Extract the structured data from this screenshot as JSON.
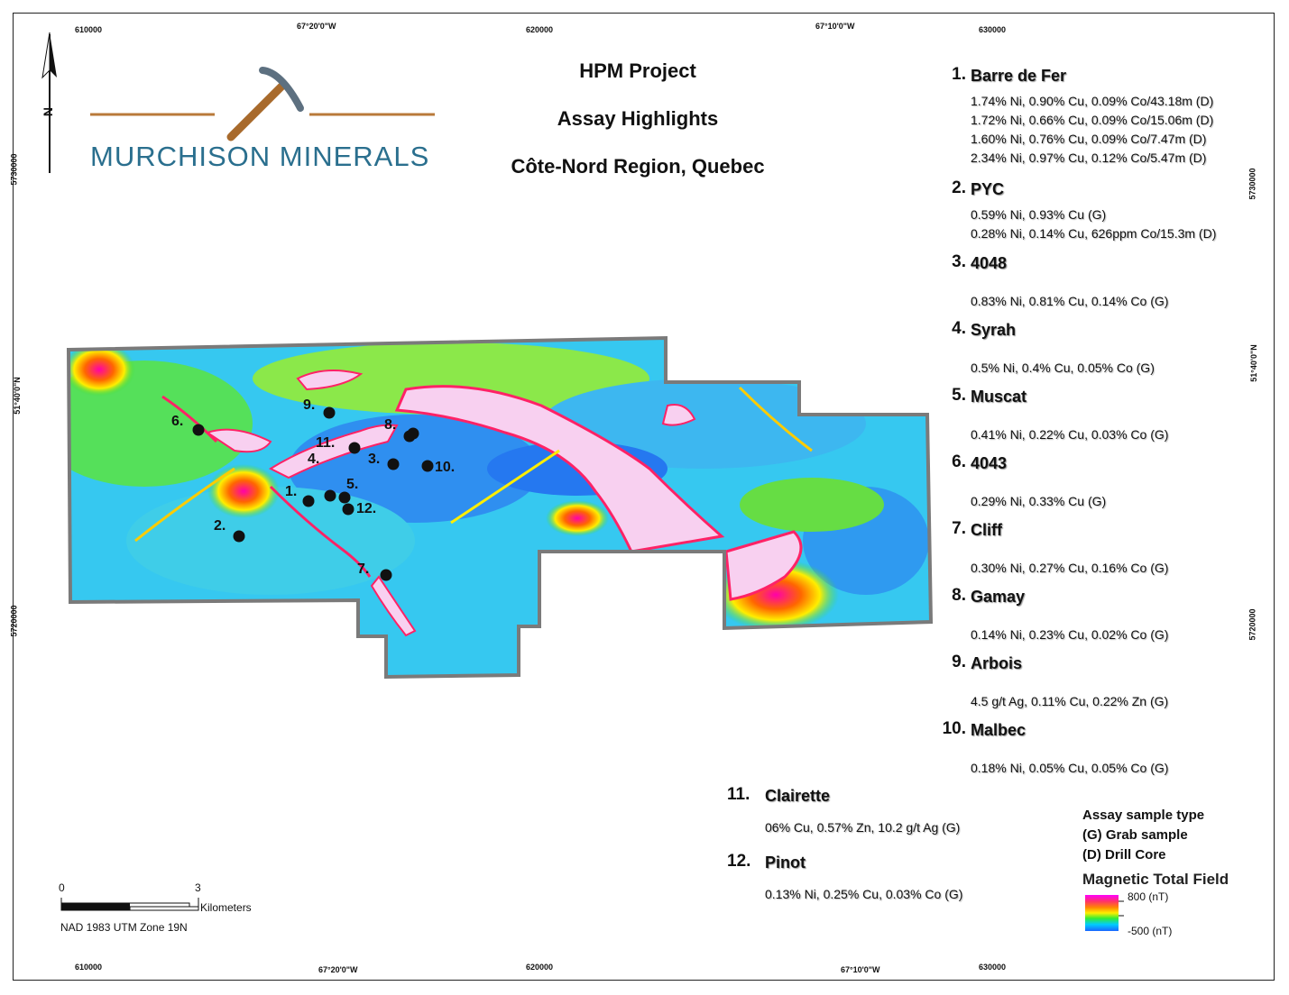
{
  "title": {
    "line1": "HPM Project",
    "line2": "Assay Highlights",
    "line3": "Côte-Nord Region, Quebec"
  },
  "logo": {
    "text": "MURCHISON MINERALS",
    "icon": "pickaxe-icon"
  },
  "north_arrow": {
    "label": "N"
  },
  "grid_labels": {
    "top": [
      "610000",
      "67°20'0\"W",
      "620000",
      "67°10'0\"W",
      "630000"
    ],
    "bottom": [
      "610000",
      "67°20'0\"W",
      "620000",
      "67°10'0\"W",
      "630000"
    ],
    "left": [
      "5730000",
      "51°40'0\"N",
      "5720000"
    ],
    "right": [
      "5730000",
      "51°40'0\"N",
      "5720000"
    ]
  },
  "sites": [
    {
      "num": "1.",
      "name": "Barre de Fer",
      "lines": [
        "1.74% Ni, 0.90% Cu, 0.09% Co/43.18m (D)",
        "1.72% Ni, 0.66% Cu, 0.09% Co/15.06m (D)",
        "1.60% Ni, 0.76% Cu, 0.09% Co/7.47m (D)",
        "2.34% Ni, 0.97% Cu, 0.12% Co/5.47m (D)"
      ]
    },
    {
      "num": "2.",
      "name": "PYC",
      "lines": [
        "0.59% Ni, 0.93% Cu (G)",
        "0.28% Ni, 0.14% Cu, 626ppm Co/15.3m (D)"
      ]
    },
    {
      "num": "3.",
      "name": "4048",
      "lines": [
        "0.83% Ni, 0.81% Cu, 0.14% Co (G)"
      ]
    },
    {
      "num": "4.",
      "name": "Syrah",
      "lines": [
        "0.5% Ni, 0.4% Cu, 0.05% Co (G)"
      ]
    },
    {
      "num": "5.",
      "name": "Muscat",
      "lines": [
        "0.41% Ni, 0.22% Cu, 0.03% Co (G)"
      ]
    },
    {
      "num": "6.",
      "name": "4043",
      "lines": [
        "0.29% Ni, 0.33% Cu  (G)"
      ]
    },
    {
      "num": "7.",
      "name": "Cliff",
      "lines": [
        "0.30% Ni, 0.27% Cu, 0.16% Co (G)"
      ]
    },
    {
      "num": "8.",
      "name": "Gamay",
      "lines": [
        "0.14% Ni, 0.23% Cu, 0.02% Co (G)"
      ]
    },
    {
      "num": "9.",
      "name": "Arbois",
      "lines": [
        "4.5 g/t Ag, 0.11% Cu, 0.22% Zn (G)"
      ]
    },
    {
      "num": "10.",
      "name": "Malbec",
      "lines": [
        "0.18% Ni, 0.05% Cu, 0.05% Co (G)"
      ]
    },
    {
      "num": "11.",
      "name": "Clairette",
      "lines": [
        "06% Cu, 0.57% Zn, 10.2 g/t Ag (G)"
      ]
    },
    {
      "num": "12.",
      "name": "Pinot",
      "lines": [
        "0.13% Ni, 0.25% Cu, 0.03% Co (G)"
      ]
    }
  ],
  "map_points": [
    "1.",
    "2.",
    "3.",
    "4.",
    "5.",
    "6.",
    "7.",
    "8.",
    "9.",
    "10.",
    "11.",
    "12."
  ],
  "legend": {
    "sample_title": "Assay sample type",
    "grab": "(G) Grab sample",
    "drill": "(D) Drill Core",
    "field_title": "Magnetic Total Field",
    "max": "800 (nT)",
    "min": "-500 (nT)",
    "gradient_colors": [
      "#ff00ff",
      "#ff3366",
      "#ff8800",
      "#ffee00",
      "#33ee33",
      "#00ccff",
      "#1a66ff"
    ]
  },
  "scale_bar": {
    "start": "0",
    "end": "3",
    "unit": "Kilometers",
    "projection": "NAD 1983 UTM Zone 19N"
  }
}
